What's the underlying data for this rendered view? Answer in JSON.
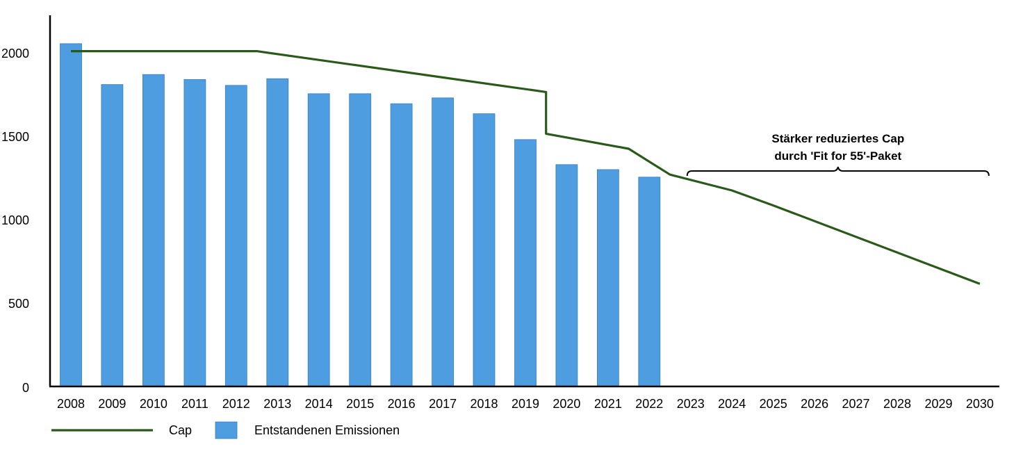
{
  "chart_data": {
    "type": "bar",
    "title": "",
    "xlabel": "",
    "ylabel": "",
    "categories": [
      "2008",
      "2009",
      "2010",
      "2011",
      "2012",
      "2013",
      "2014",
      "2015",
      "2016",
      "2017",
      "2018",
      "2019",
      "2020",
      "2021",
      "2022",
      "2023",
      "2024",
      "2025",
      "2026",
      "2027",
      "2028",
      "2029",
      "2030"
    ],
    "ylim": [
      0,
      2200
    ],
    "yticks": [
      0,
      500,
      1000,
      1500,
      2000
    ],
    "grid": false,
    "series": [
      {
        "name": "Entstandenen Emissionen",
        "type": "bar",
        "color": "#4d9de0",
        "values": [
          2055,
          1810,
          1870,
          1840,
          1805,
          1845,
          1755,
          1755,
          1695,
          1730,
          1635,
          1480,
          1330,
          1300,
          1255,
          null,
          null,
          null,
          null,
          null,
          null,
          null,
          null
        ]
      },
      {
        "name": "Cap",
        "type": "line",
        "color": "#2a5a1a",
        "points": [
          {
            "x": "2008",
            "y": 2010
          },
          {
            "x": "2012.5",
            "y": 2010
          },
          {
            "x": "2019.5",
            "y": 1765
          },
          {
            "x": "2019.5",
            "y": 1515
          },
          {
            "x": "2021.5",
            "y": 1425
          },
          {
            "x": "2022.5",
            "y": 1270
          },
          {
            "x": "2024",
            "y": 1175
          },
          {
            "x": "2025",
            "y": 1085
          },
          {
            "x": "2030",
            "y": 615
          }
        ]
      }
    ],
    "annotations": [
      {
        "text_lines": [
          "Stärker reduziertes Cap",
          "durch 'Fit for 55'-Paket"
        ],
        "from": "2023",
        "to": "2030"
      }
    ],
    "legend": {
      "placement": "bottom-left",
      "entries": [
        "Cap",
        "Entstandenen Emissionen"
      ]
    }
  }
}
